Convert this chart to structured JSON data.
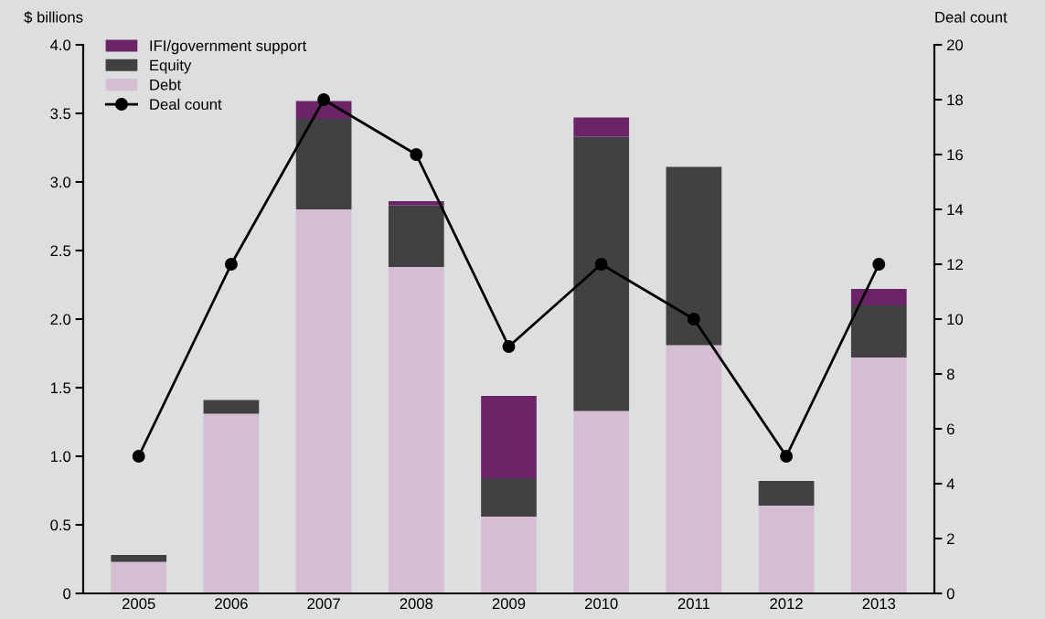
{
  "chart_data": {
    "type": "bar",
    "stacked": true,
    "ylabel": "$ billions",
    "y2label": "Deal count",
    "categories": [
      "2005",
      "2006",
      "2007",
      "2008",
      "2009",
      "2010",
      "2011",
      "2012",
      "2013"
    ],
    "series": [
      {
        "name": "Debt",
        "color": "#d5bed3",
        "values": [
          0.23,
          1.31,
          2.8,
          2.38,
          0.56,
          1.33,
          1.81,
          0.64,
          1.72
        ]
      },
      {
        "name": "Equity",
        "color": "#414042",
        "values": [
          0.05,
          0.1,
          0.66,
          0.45,
          0.28,
          2.0,
          1.3,
          0.18,
          0.38
        ]
      },
      {
        "name": "IFI/government support",
        "color": "#6b2468",
        "values": [
          0,
          0,
          0.13,
          0.03,
          0.6,
          0.14,
          0,
          0,
          0.12
        ]
      },
      {
        "name": "Deal count",
        "type": "line",
        "axis": "y2",
        "color": "#000000",
        "marker": "circle",
        "values": [
          5,
          12,
          18,
          16,
          9,
          12,
          10,
          5,
          12
        ]
      }
    ],
    "ylim": [
      0,
      4.0
    ],
    "yticks": [
      {
        "value": 0,
        "label": "0"
      },
      {
        "value": 0.5,
        "label": "0.5"
      },
      {
        "value": 1.0,
        "label": "1.0"
      },
      {
        "value": 1.5,
        "label": "1.5"
      },
      {
        "value": 2.0,
        "label": "2.0"
      },
      {
        "value": 2.5,
        "label": "2.5"
      },
      {
        "value": 3.0,
        "label": "3.0"
      },
      {
        "value": 3.5,
        "label": "3.5"
      },
      {
        "value": 4.0,
        "label": "4.0"
      }
    ],
    "y2lim": [
      0,
      20
    ],
    "y2ticks": [
      0,
      2,
      4,
      6,
      8,
      10,
      12,
      14,
      16,
      18,
      20
    ],
    "grid": false,
    "legend": "top left"
  }
}
